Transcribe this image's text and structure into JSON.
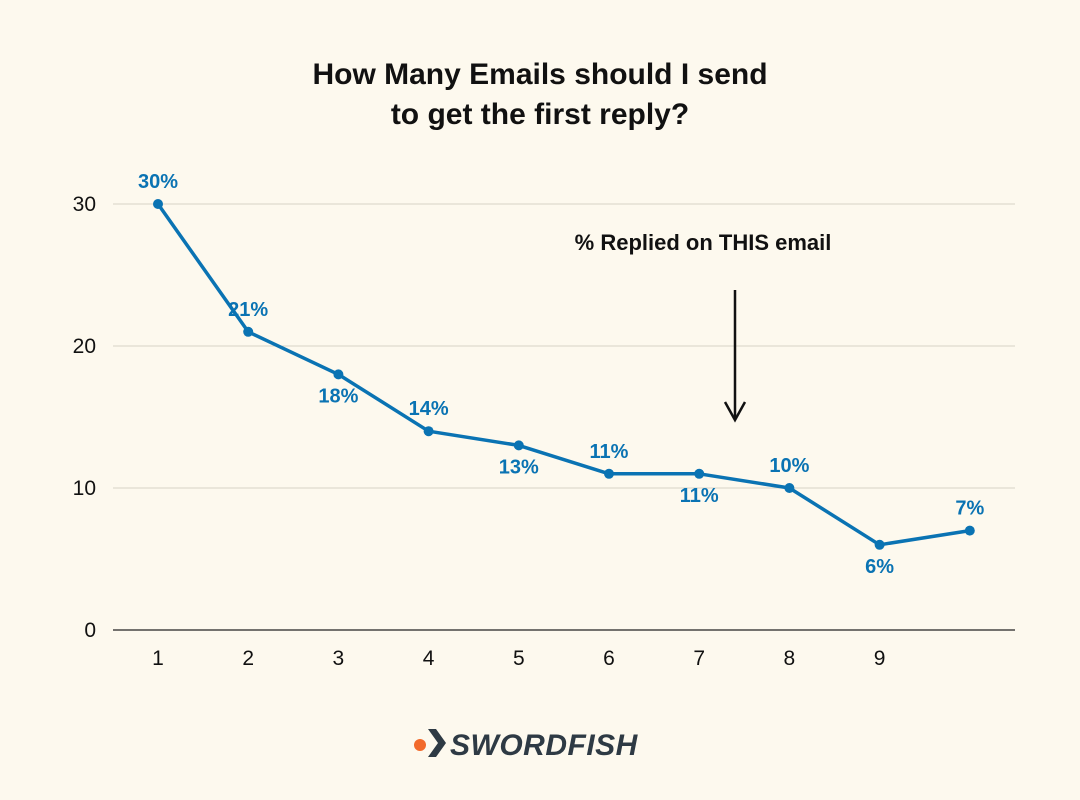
{
  "chart_data": {
    "type": "line",
    "title": [
      "How Many Emails should I send",
      "to get the first reply?"
    ],
    "xlabel": "",
    "ylabel": "",
    "x_ticks": [
      "1",
      "2",
      "3",
      "4",
      "5",
      "6",
      "7",
      "8",
      "9"
    ],
    "y_ticks": [
      "0",
      "10",
      "20",
      "30"
    ],
    "ylim": [
      0,
      30
    ],
    "grid": true,
    "series": [
      {
        "name": "% Replied on THIS email",
        "x": [
          1,
          2,
          3,
          4,
          5,
          6,
          7,
          8,
          9,
          10
        ],
        "values": [
          30,
          21,
          18,
          14,
          13,
          11,
          11,
          10,
          6,
          7
        ],
        "labels": [
          "30%",
          "21%",
          "18%",
          "14%",
          "13%",
          "11%",
          "11%",
          "10%",
          "6%",
          "7%"
        ],
        "label_positions": [
          "above",
          "above",
          "below",
          "above",
          "below",
          "above",
          "below",
          "above",
          "below",
          "above"
        ]
      }
    ],
    "annotation": {
      "text": "% Replied on THIS email",
      "arrow": "down"
    }
  },
  "brand": {
    "name": "SWORDFISH",
    "text_color": "#2e3a44",
    "dot_color": "#f26a2b"
  },
  "colors": {
    "series": "#0a73b3",
    "background": "#fdf9ee",
    "grid": "#d6d2c6"
  }
}
